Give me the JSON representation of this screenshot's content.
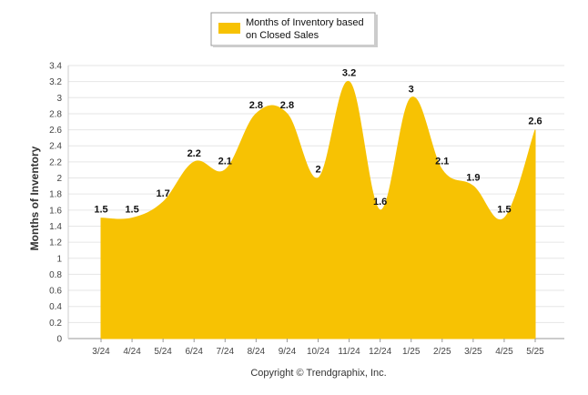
{
  "chart_data": {
    "type": "area",
    "categories": [
      "3/24",
      "4/24",
      "5/24",
      "6/24",
      "7/24",
      "8/24",
      "9/24",
      "10/24",
      "11/24",
      "12/24",
      "1/25",
      "2/25",
      "3/25",
      "4/25",
      "5/25"
    ],
    "series": [
      {
        "name": "Months of Inventory based on Closed Sales",
        "values": [
          1.5,
          1.5,
          1.7,
          2.2,
          2.1,
          2.8,
          2.8,
          2,
          3.2,
          1.6,
          3,
          2.1,
          1.9,
          1.5,
          2.6
        ]
      }
    ],
    "data_labels": [
      "1.5",
      "1.5",
      "1.7",
      "2.2",
      "2.1",
      "2.8",
      "2.8",
      "2",
      "3.2",
      "1.6",
      "3",
      "2.1",
      "1.9",
      "1.5",
      "2.6"
    ],
    "xlabel": "",
    "ylabel": "Months of Inventory",
    "ylim": [
      0,
      3.4
    ],
    "yticks": [
      "0",
      "0.2",
      "0.4",
      "0.6",
      "0.8",
      "1",
      "1.2",
      "1.4",
      "1.6",
      "1.8",
      "2",
      "2.2",
      "2.4",
      "2.6",
      "2.8",
      "3",
      "3.2",
      "3.4"
    ],
    "grid": true,
    "legend_position": "top-center",
    "color": "#F7C203"
  },
  "legend": {
    "line1": "Months of Inventory based",
    "line2": "on Closed Sales"
  },
  "footer": {
    "copyright": "Copyright © Trendgraphix, Inc."
  }
}
